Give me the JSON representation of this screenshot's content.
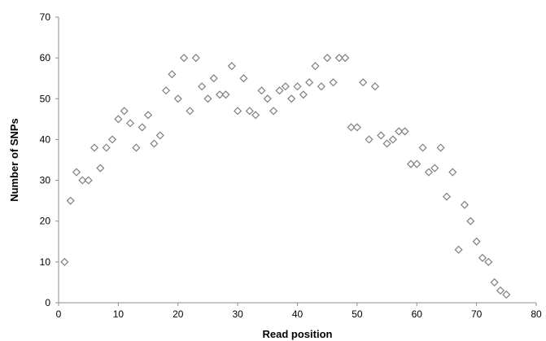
{
  "chart_data": {
    "type": "scatter",
    "title": "",
    "xlabel": "Read position",
    "ylabel": "Number of SNPs",
    "xlim": [
      0,
      80
    ],
    "ylim": [
      0,
      70
    ],
    "xticks": [
      0,
      10,
      20,
      30,
      40,
      50,
      60,
      70,
      80
    ],
    "yticks": [
      0,
      10,
      20,
      30,
      40,
      50,
      60,
      70
    ],
    "grid": false,
    "legend": "none",
    "marker": "hollow-diamond",
    "marker_color": "#7f7f7f",
    "series": [
      {
        "x": [
          1,
          2,
          3,
          4,
          5,
          6,
          7,
          8,
          9,
          10,
          11,
          12,
          13,
          14,
          15,
          16,
          17,
          18,
          19,
          20,
          21,
          22,
          23,
          24,
          25,
          26,
          27,
          28,
          29,
          30,
          31,
          32,
          33,
          34,
          35,
          36,
          37,
          38,
          39,
          40,
          41,
          42,
          43,
          44,
          45,
          46,
          47,
          48,
          49,
          50,
          51,
          52,
          53,
          54,
          55,
          56,
          57,
          58,
          59,
          60,
          61,
          62,
          63,
          64,
          65,
          66,
          67,
          68,
          69,
          70,
          71,
          72,
          73,
          74,
          75
        ],
        "y": [
          10,
          25,
          32,
          30,
          30,
          38,
          33,
          38,
          40,
          45,
          47,
          44,
          38,
          43,
          46,
          39,
          41,
          52,
          56,
          50,
          60,
          47,
          60,
          53,
          50,
          55,
          51,
          51,
          58,
          47,
          55,
          47,
          46,
          52,
          50,
          47,
          52,
          53,
          50,
          53,
          51,
          54,
          58,
          53,
          60,
          54,
          60,
          60,
          43,
          43,
          54,
          40,
          53,
          41,
          39,
          40,
          42,
          42,
          34,
          34,
          38,
          32,
          33,
          38,
          26,
          32,
          13,
          24,
          20,
          15,
          11,
          10,
          5,
          3,
          2
        ]
      }
    ]
  }
}
